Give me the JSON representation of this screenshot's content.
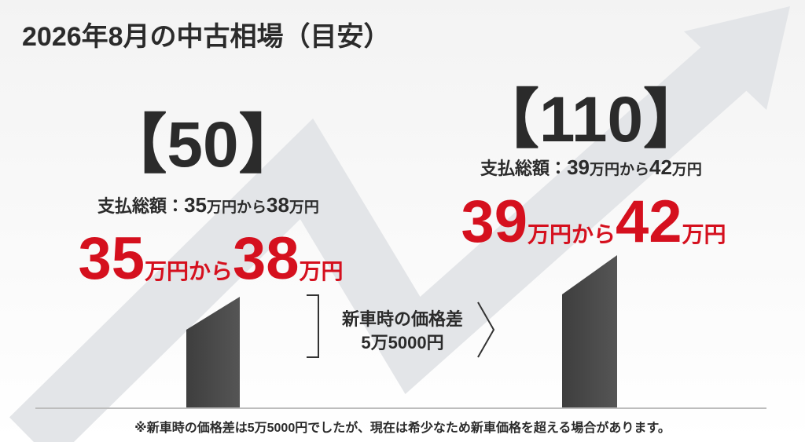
{
  "title": "2026年8月の中古相場（目安）",
  "models": [
    {
      "name": "【50】",
      "summary": {
        "label": "支払総額：",
        "from": "35",
        "from_unit": "万円から",
        "to": "38",
        "to_unit": "万円"
      },
      "price": {
        "from": "35",
        "middle": "万円から",
        "to": "38",
        "unit": "万円"
      }
    },
    {
      "name": "【110】",
      "summary": {
        "label": "支払総額：",
        "from": "39",
        "from_unit": "万円から",
        "to": "42",
        "to_unit": "万円"
      },
      "price": {
        "from": "39",
        "middle": "万円から",
        "to": "42",
        "unit": "万円"
      }
    }
  ],
  "difference": {
    "label": "新車時の価格差",
    "amount": "5万5000円"
  },
  "footnote": "※新車時の価格差は5万5000円でしたが、現在は希少なため新車価格を超える場合があります。"
}
